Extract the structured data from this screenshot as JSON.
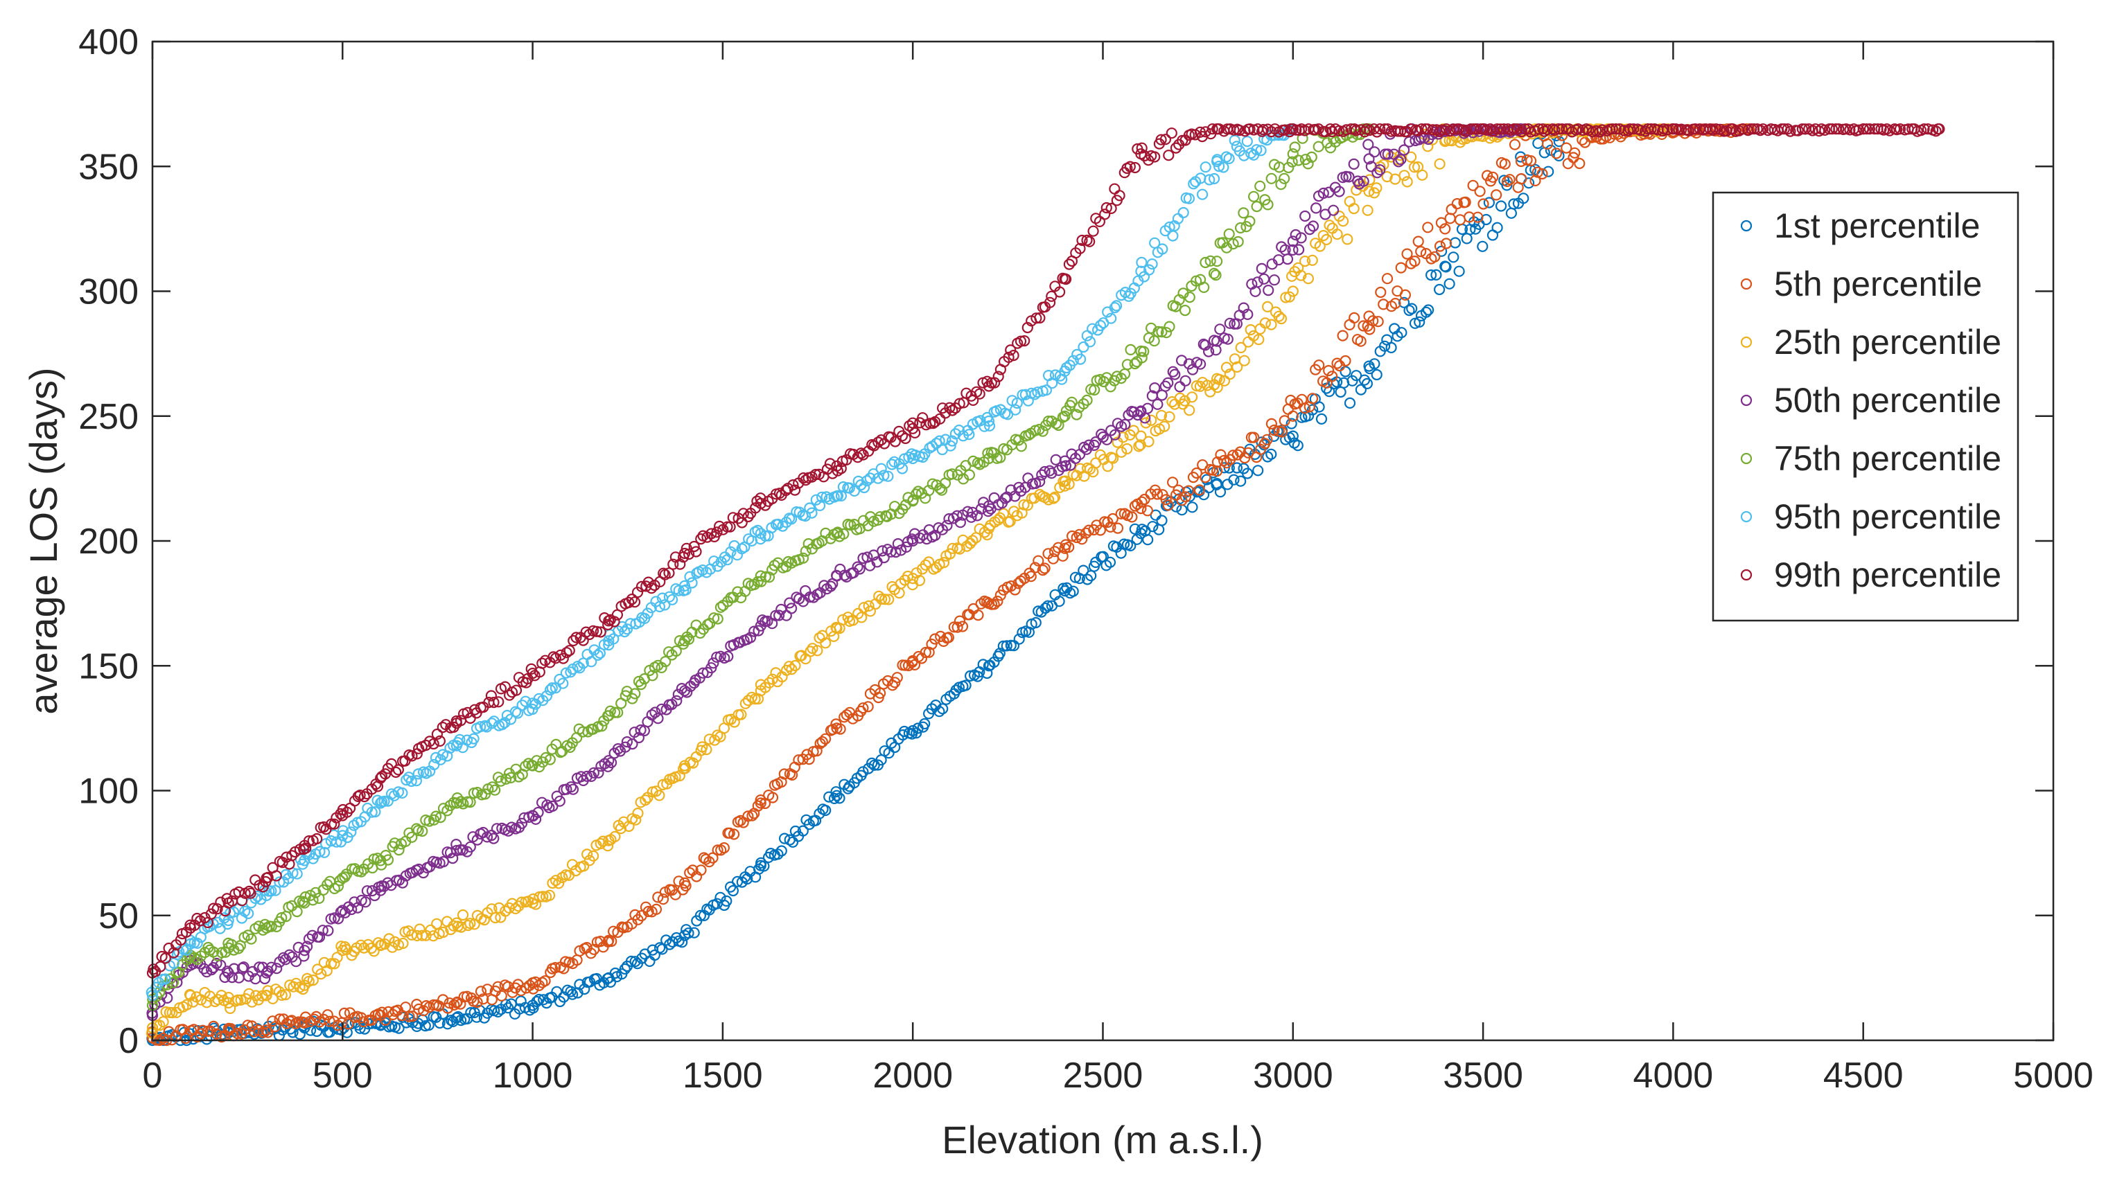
{
  "chart_data": {
    "type": "scatter",
    "title": "",
    "xlabel": "Elevation (m a.s.l.)",
    "ylabel": "average LOS (days)",
    "xlim": [
      0,
      5000
    ],
    "ylim": [
      0,
      400
    ],
    "xticks": [
      0,
      500,
      1000,
      1500,
      2000,
      2500,
      3000,
      3500,
      4000,
      4500,
      5000
    ],
    "yticks": [
      0,
      50,
      100,
      150,
      200,
      250,
      300,
      350,
      400
    ],
    "grid": false,
    "legend_position": "top-right",
    "marker": "open-circle",
    "series": [
      {
        "name": "1st percentile",
        "color": "#0072BD",
        "x": [
          0,
          200,
          400,
          600,
          800,
          1000,
          1200,
          1400,
          1600,
          1800,
          2000,
          2200,
          2400,
          2600,
          2800,
          3000,
          3200,
          3400,
          3600,
          3700
        ],
        "y": [
          0,
          3,
          5,
          6,
          9,
          14,
          25,
          42,
          70,
          98,
          124,
          150,
          180,
          203,
          223,
          242,
          270,
          310,
          345,
          360
        ]
      },
      {
        "name": "5th percentile",
        "color": "#D95319",
        "x": [
          0,
          200,
          400,
          600,
          800,
          1000,
          1200,
          1400,
          1600,
          1800,
          2000,
          2200,
          2400,
          2600,
          2800,
          3000,
          3200,
          3400,
          3600,
          3800,
          4000,
          4200
        ],
        "y": [
          1,
          4,
          7,
          10,
          15,
          23,
          40,
          63,
          95,
          125,
          152,
          175,
          197,
          213,
          228,
          250,
          290,
          325,
          352,
          362,
          364,
          365
        ]
      },
      {
        "name": "25th percentile",
        "color": "#EDB120",
        "x": [
          0,
          100,
          200,
          300,
          400,
          500,
          600,
          800,
          1000,
          1200,
          1400,
          1600,
          1800,
          2000,
          2200,
          2400,
          2600,
          2800,
          3000,
          3200,
          3400,
          3600,
          3800,
          4000
        ],
        "y": [
          5,
          18,
          15,
          18,
          22,
          36,
          38,
          47,
          55,
          80,
          110,
          140,
          165,
          185,
          205,
          222,
          242,
          265,
          300,
          340,
          360,
          364,
          365,
          365
        ]
      },
      {
        "name": "50th percentile",
        "color": "#7E2F8E",
        "x": [
          0,
          100,
          200,
          300,
          400,
          500,
          600,
          800,
          1000,
          1200,
          1400,
          1600,
          1800,
          2000,
          2200,
          2400,
          2600,
          2800,
          3000,
          3200,
          3400,
          3600
        ],
        "y": [
          10,
          32,
          27,
          27,
          36,
          52,
          60,
          76,
          90,
          112,
          140,
          166,
          186,
          200,
          214,
          232,
          252,
          280,
          320,
          353,
          364,
          365
        ]
      },
      {
        "name": "75th percentile",
        "color": "#77AC30",
        "x": [
          0,
          100,
          200,
          300,
          400,
          500,
          600,
          800,
          1000,
          1200,
          1400,
          1600,
          1800,
          2000,
          2200,
          2400,
          2600,
          2800,
          3000,
          3200
        ],
        "y": [
          14,
          34,
          37,
          45,
          55,
          65,
          72,
          95,
          110,
          130,
          160,
          186,
          203,
          216,
          233,
          250,
          276,
          312,
          355,
          365
        ]
      },
      {
        "name": "95th percentile",
        "color": "#4DBEEE",
        "x": [
          0,
          100,
          200,
          300,
          400,
          500,
          600,
          800,
          1000,
          1200,
          1400,
          1600,
          1800,
          2000,
          2200,
          2400,
          2600,
          2800,
          3000
        ],
        "y": [
          18,
          40,
          48,
          58,
          72,
          82,
          95,
          118,
          135,
          160,
          182,
          203,
          218,
          233,
          248,
          268,
          308,
          352,
          365
        ]
      },
      {
        "name": "99th percentile",
        "color": "#A2142F",
        "x": [
          0,
          100,
          200,
          300,
          400,
          500,
          600,
          800,
          1000,
          1200,
          1400,
          1600,
          1800,
          2000,
          2200,
          2400,
          2600,
          2800,
          3000,
          3500,
          4000,
          4500,
          4700
        ],
        "y": [
          27,
          45,
          55,
          65,
          78,
          90,
          105,
          127,
          147,
          168,
          195,
          215,
          230,
          245,
          262,
          305,
          355,
          365,
          365,
          365,
          365,
          365,
          365
        ]
      }
    ]
  }
}
